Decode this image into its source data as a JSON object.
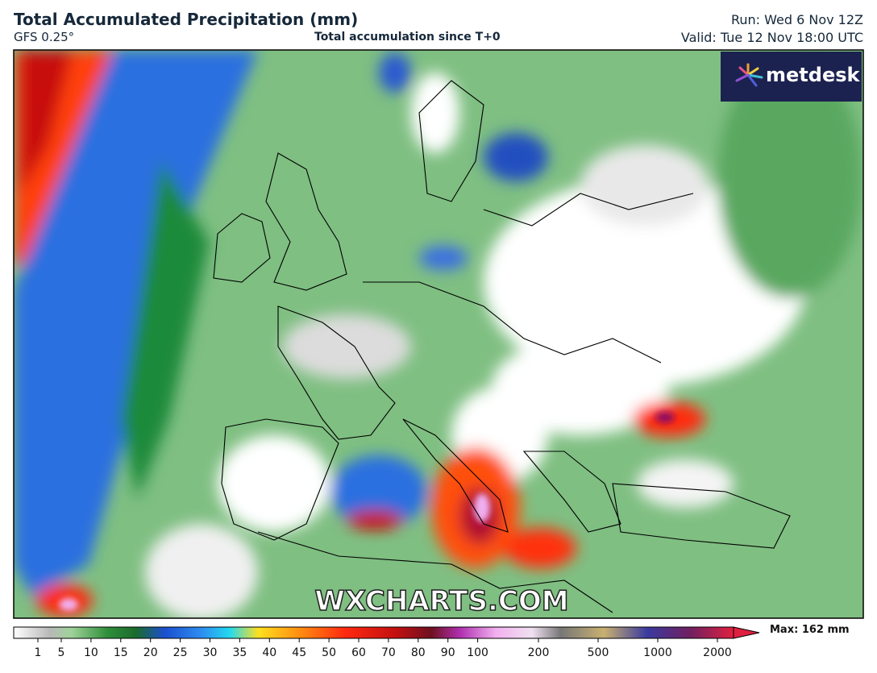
{
  "header": {
    "title": "Total Accumulated Precipitation (mm)",
    "model": "GFS 0.25°",
    "subtitle": "Total accumulation since T+0",
    "run": "Run: Wed 6 Nov 12Z",
    "valid": "Valid: Tue 12 Nov 18:00 UTC"
  },
  "logo": "metdesk",
  "watermark": "WXCHARTS.COM",
  "legend": {
    "ticks": [
      1,
      5,
      10,
      15,
      20,
      25,
      30,
      35,
      40,
      45,
      50,
      60,
      70,
      80,
      90,
      100,
      200,
      500,
      1000,
      2000
    ],
    "max_label": "Max: 162 mm"
  }
}
